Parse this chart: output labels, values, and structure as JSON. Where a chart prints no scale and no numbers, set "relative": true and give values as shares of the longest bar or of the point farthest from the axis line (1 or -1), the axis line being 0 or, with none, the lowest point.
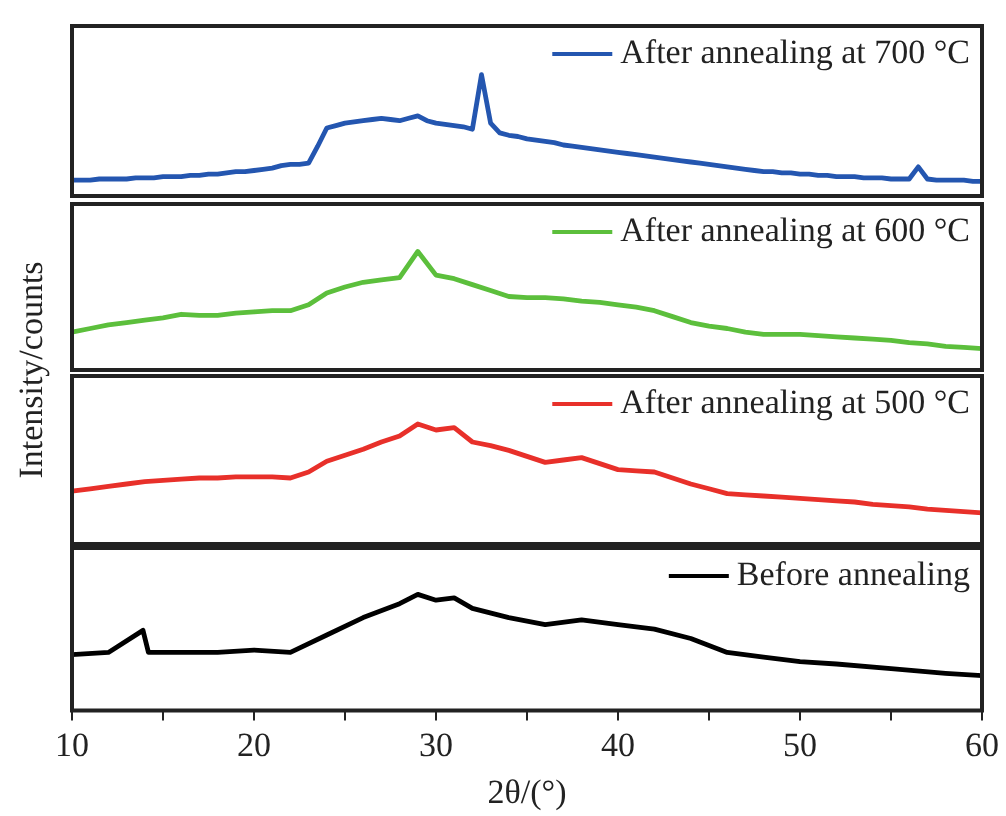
{
  "chart_data": [
    {
      "type": "line",
      "relative": true,
      "ylabel": "Intensity/counts",
      "tick_labels": false,
      "legend": "top right",
      "marker": "none",
      "line_style": "solid",
      "categories": [
        null,
        null,
        null,
        null,
        null,
        null,
        null,
        null,
        null,
        null,
        null,
        null,
        null,
        null,
        null,
        null,
        null,
        null,
        null,
        null,
        null,
        null,
        null,
        null,
        null,
        null,
        null,
        null,
        null,
        null,
        null,
        null,
        null,
        null,
        null,
        null,
        null,
        null,
        null,
        null,
        null,
        null,
        null,
        null,
        null,
        null,
        null,
        null,
        null,
        null,
        null,
        null,
        null,
        null,
        null,
        null,
        null,
        null,
        null,
        null,
        null,
        null,
        null,
        null,
        null,
        null,
        null,
        null,
        null,
        null,
        null,
        null,
        null,
        null,
        null,
        null,
        null,
        null,
        null,
        null,
        null,
        null,
        null,
        null,
        null,
        null,
        null,
        null,
        null,
        null,
        null,
        null,
        null,
        null,
        null,
        null,
        null,
        null,
        null,
        null,
        null
      ],
      "series": [
        {
          "name": "After annealing at 700 °C",
          "color": "#2456b0",
          "values": [
            0.13,
            0.13,
            0.13,
            0.14,
            0.14,
            0.14,
            0.14,
            0.15,
            0.15,
            0.15,
            0.16,
            0.16,
            0.16,
            0.17,
            0.17,
            0.18,
            0.18,
            0.19,
            0.2,
            0.2,
            0.21,
            0.22,
            0.23,
            0.25,
            0.26,
            0.26,
            0.27,
            0.41,
            0.56,
            0.58,
            0.6,
            0.61,
            0.62,
            0.63,
            0.64,
            0.63,
            0.62,
            0.64,
            0.66,
            0.62,
            0.6,
            0.59,
            0.58,
            0.57,
            0.55,
            1.0,
            0.6,
            0.52,
            0.5,
            0.49,
            0.47,
            0.46,
            0.45,
            0.44,
            0.42,
            0.41,
            0.4,
            0.39,
            0.38,
            0.37,
            0.36,
            0.35,
            0.34,
            0.33,
            0.32,
            0.31,
            0.3,
            0.29,
            0.28,
            0.27,
            0.26,
            0.25,
            0.24,
            0.23,
            0.22,
            0.21,
            0.2,
            0.2,
            0.19,
            0.19,
            0.18,
            0.18,
            0.17,
            0.17,
            0.16,
            0.16,
            0.16,
            0.15,
            0.15,
            0.15,
            0.14,
            0.14,
            0.14,
            0.24,
            0.14,
            0.13,
            0.13,
            0.13,
            0.13,
            0.12,
            0.12
          ]
        }
      ]
    },
    {
      "type": "line",
      "relative": true,
      "tick_labels": false,
      "legend": "top right",
      "marker": "none",
      "line_style": "solid",
      "categories": [
        null,
        null,
        null,
        null,
        null,
        null,
        null,
        null,
        null,
        null,
        null,
        null,
        null,
        null,
        null,
        null,
        null,
        null,
        null,
        null,
        null,
        null,
        null,
        null,
        null,
        null,
        null,
        null,
        null,
        null,
        null,
        null,
        null,
        null,
        null,
        null,
        null,
        null,
        null,
        null,
        null,
        null,
        null,
        null,
        null,
        null,
        null,
        null,
        null,
        null,
        null
      ],
      "series": [
        {
          "name": "After annealing at 600 °C",
          "color": "#5cbf3c",
          "values": [
            0.32,
            0.35,
            0.38,
            0.4,
            0.42,
            0.44,
            0.47,
            0.46,
            0.46,
            0.48,
            0.49,
            0.5,
            0.5,
            0.55,
            0.65,
            0.7,
            0.74,
            0.76,
            0.78,
            1.0,
            0.8,
            0.77,
            0.72,
            0.67,
            0.62,
            0.61,
            0.61,
            0.6,
            0.58,
            0.57,
            0.55,
            0.53,
            0.5,
            0.45,
            0.4,
            0.37,
            0.35,
            0.32,
            0.3,
            0.3,
            0.3,
            0.29,
            0.28,
            0.27,
            0.26,
            0.25,
            0.23,
            0.22,
            0.2,
            0.19,
            0.18
          ]
        }
      ]
    },
    {
      "type": "line",
      "relative": true,
      "tick_labels": false,
      "legend": "top right",
      "marker": "none",
      "line_style": "solid",
      "categories": [
        null,
        null,
        null,
        null,
        null,
        null,
        null,
        null,
        null,
        null,
        null,
        null,
        null,
        null,
        null,
        null,
        null,
        null,
        null,
        null,
        null,
        null,
        null,
        null,
        null,
        null,
        null,
        null,
        null,
        null,
        null,
        null,
        null,
        null,
        null,
        null,
        null,
        null,
        null,
        null,
        null,
        null,
        null,
        null,
        null,
        null,
        null,
        null,
        null,
        null,
        null
      ],
      "series": [
        {
          "name": "After annealing at 500 °C",
          "color": "#e8302a",
          "values": [
            0.44,
            0.46,
            0.48,
            0.5,
            0.52,
            0.53,
            0.54,
            0.55,
            0.55,
            0.56,
            0.56,
            0.56,
            0.55,
            0.6,
            0.69,
            0.74,
            0.79,
            0.85,
            0.9,
            1.0,
            0.95,
            0.97,
            0.85,
            0.82,
            0.78,
            0.73,
            0.68,
            0.7,
            0.72,
            0.67,
            0.62,
            0.61,
            0.6,
            0.55,
            0.5,
            0.46,
            0.42,
            0.41,
            0.4,
            0.39,
            0.38,
            0.37,
            0.36,
            0.35,
            0.33,
            0.32,
            0.31,
            0.29,
            0.28,
            0.27,
            0.26
          ]
        }
      ]
    },
    {
      "type": "line",
      "relative": true,
      "xlim": [
        10,
        60
      ],
      "xticks": [
        10,
        {
          "value": 15,
          "label": null
        },
        20,
        {
          "value": 25,
          "label": null
        },
        30,
        {
          "value": 35,
          "label": null
        },
        40,
        {
          "value": 45,
          "label": null
        },
        50,
        {
          "value": 55,
          "label": null
        },
        60
      ],
      "xlabel": "2θ/(°)",
      "tick_labels": "x",
      "legend": "top right",
      "marker": "none",
      "line_style": "solid",
      "series": [
        {
          "name": "Before annealing",
          "color": "#000000",
          "x": [
            10,
            12,
            13.9,
            14.2,
            16,
            18,
            20,
            22,
            24,
            26,
            28,
            29,
            30,
            31,
            32,
            34,
            36,
            38,
            40,
            42,
            44,
            46,
            48,
            50,
            52,
            55,
            58,
            60
          ],
          "values": [
            0.48,
            0.5,
            0.69,
            0.5,
            0.5,
            0.5,
            0.52,
            0.5,
            0.65,
            0.8,
            0.92,
            1.0,
            0.95,
            0.97,
            0.88,
            0.8,
            0.74,
            0.78,
            0.74,
            0.7,
            0.62,
            0.5,
            0.46,
            0.42,
            0.4,
            0.36,
            0.32,
            0.3
          ]
        }
      ]
    }
  ]
}
